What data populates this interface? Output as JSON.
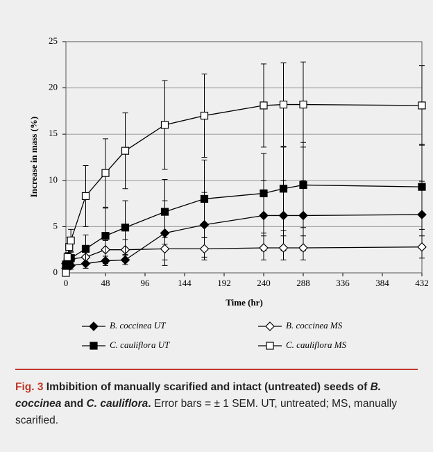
{
  "chart_data": {
    "type": "line",
    "x": [
      0,
      2,
      4,
      6,
      24,
      48,
      72,
      120,
      168,
      240,
      264,
      288,
      432
    ],
    "xlim": [
      0,
      432
    ],
    "xticks": [
      0,
      48,
      96,
      144,
      192,
      240,
      288,
      336,
      384,
      432
    ],
    "ylim": [
      0,
      25
    ],
    "yticks": [
      0,
      5,
      10,
      15,
      20,
      25
    ],
    "xlabel": "Time (hr)",
    "ylabel": "Increase in mass (%)",
    "grid": true,
    "series": [
      {
        "name": "B. coccinea UT",
        "color": "#000000",
        "marker": "diamond",
        "filled": true,
        "values": [
          0.5,
          0.6,
          0.7,
          0.8,
          1.0,
          1.3,
          1.4,
          4.3,
          5.2,
          6.2,
          6.2,
          6.2,
          6.3
        ],
        "errors": [
          0.2,
          0.3,
          0.3,
          0.4,
          0.5,
          0.5,
          0.5,
          3.5,
          3.5,
          3.8,
          3.8,
          3.8,
          3.6
        ]
      },
      {
        "name": "B. coccinea MS",
        "color": "#000000",
        "marker": "diamond",
        "filled": false,
        "values": [
          1.0,
          1.2,
          1.3,
          1.5,
          1.7,
          2.5,
          2.5,
          2.6,
          2.6,
          2.7,
          2.7,
          2.7,
          2.8
        ],
        "errors": [
          0.3,
          0.3,
          0.4,
          0.4,
          0.6,
          1.0,
          1.1,
          1.2,
          1.2,
          1.3,
          1.3,
          1.3,
          1.2
        ]
      },
      {
        "name": "C. cauliflora UT",
        "color": "#000000",
        "marker": "square",
        "filled": true,
        "values": [
          0.9,
          1.2,
          1.5,
          1.6,
          2.6,
          4.0,
          4.9,
          6.6,
          8.0,
          8.6,
          9.1,
          9.5,
          9.3
        ],
        "errors": [
          0.3,
          0.4,
          0.5,
          0.6,
          1.5,
          3.0,
          2.9,
          3.5,
          4.2,
          4.3,
          4.5,
          4.6,
          4.6
        ]
      },
      {
        "name": "C. cauliflora MS",
        "color": "#000000",
        "marker": "square",
        "filled": false,
        "values": [
          0,
          1.7,
          2.8,
          3.5,
          8.3,
          10.8,
          13.2,
          16.0,
          17.0,
          18.1,
          18.2,
          18.2,
          18.1
        ],
        "errors": [
          0,
          0.5,
          1.0,
          1.2,
          3.3,
          3.7,
          4.1,
          4.8,
          4.5,
          4.5,
          4.5,
          4.6,
          4.3
        ]
      }
    ]
  },
  "caption": {
    "label": "Fig. 3",
    "title_1": "Imbibition of manually scarified and intact (untreated) seeds of",
    "species_1": "B. coccinea",
    "title_2": "and",
    "species_2": "C. cauliflora",
    "title_3": ".",
    "text": "Error bars = ± 1 SEM. UT, untreated; MS, manually scarified."
  }
}
